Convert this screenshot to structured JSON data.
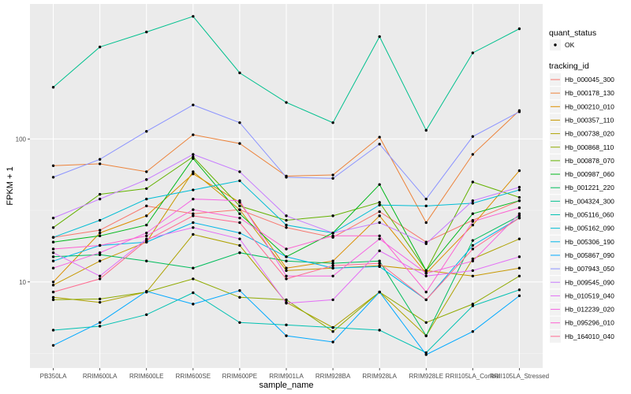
{
  "chart_data": {
    "type": "line",
    "xlabel": "sample_name",
    "ylabel": "FPKM + 1",
    "y_scale": "log10",
    "ylim": [
      2.5,
      880
    ],
    "y_ticks": [
      {
        "value": 10,
        "label": "10"
      },
      {
        "value": 100,
        "label": "100"
      }
    ],
    "grid": true,
    "legend_position": "right",
    "categories": [
      "PB350LA",
      "RRIM600LA",
      "RRIM600LE",
      "RRIM600SE",
      "RRIM600PE",
      "RRIM901LA",
      "RRIM928BA",
      "RRIM928LA",
      "RRIM928LE",
      "RRII105LA_Control",
      "RRII105LA_Stressed"
    ],
    "quant_legend": {
      "title": "quant_status",
      "items": [
        "OK"
      ]
    },
    "tracking_legend_title": "tracking_id",
    "series": [
      {
        "name": "Hb_000045_300",
        "color": "#F8766D",
        "values": [
          20.5,
          23,
          34,
          30,
          32,
          24,
          20.5,
          31,
          19,
          27,
          37
        ]
      },
      {
        "name": "Hb_000178_130",
        "color": "#EC8239",
        "values": [
          65,
          67,
          59,
          107,
          93,
          55,
          56,
          103,
          26,
          78,
          158
        ]
      },
      {
        "name": "Hb_000210_010",
        "color": "#DB8E00",
        "values": [
          10,
          22,
          29,
          57,
          36,
          12.5,
          14,
          29,
          11.5,
          25,
          60
        ]
      },
      {
        "name": "Hb_000357_110",
        "color": "#C79800",
        "values": [
          9.5,
          14,
          19,
          59,
          32,
          12,
          12.5,
          13,
          12,
          11,
          12.5
        ]
      },
      {
        "name": "Hb_000738_020",
        "color": "#AEA200",
        "values": [
          7.8,
          7.2,
          8.5,
          21.5,
          18,
          7.2,
          4.8,
          8.5,
          4.2,
          14.5,
          20
        ]
      },
      {
        "name": "Hb_000868_110",
        "color": "#8FAA00",
        "values": [
          7.5,
          7.6,
          8.5,
          10.5,
          7.8,
          7.5,
          4.5,
          8.5,
          5.2,
          7,
          11
        ]
      },
      {
        "name": "Hb_000878_070",
        "color": "#64B200",
        "values": [
          24,
          41,
          45,
          75,
          34,
          27,
          29,
          36,
          12,
          50,
          39
        ]
      },
      {
        "name": "Hb_000987_060",
        "color": "#00B81B",
        "values": [
          19,
          21,
          25,
          73,
          30,
          15,
          22,
          48,
          12,
          30,
          37
        ]
      },
      {
        "name": "Hb_001221_220",
        "color": "#00BD5C",
        "values": [
          15,
          15.5,
          14,
          12.5,
          16,
          14,
          13.5,
          14,
          4.2,
          19.5,
          29
        ]
      },
      {
        "name": "Hb_004324_300",
        "color": "#00C08E",
        "values": [
          230,
          440,
          560,
          720,
          290,
          180,
          130,
          520,
          115,
          400,
          590
        ]
      },
      {
        "name": "Hb_005116_060",
        "color": "#00C1B2",
        "values": [
          4.6,
          4.9,
          5.9,
          8.4,
          5.2,
          5,
          4.8,
          4.6,
          3.2,
          6.8,
          8.8
        ]
      },
      {
        "name": "Hb_005162_090",
        "color": "#00BDD4",
        "values": [
          20.5,
          27,
          38,
          44,
          51,
          25,
          22,
          34.5,
          34,
          35.5,
          44
        ]
      },
      {
        "name": "Hb_005306_190",
        "color": "#00B7E8",
        "values": [
          14,
          18,
          19,
          26,
          22,
          15,
          12.5,
          12.8,
          7.5,
          18,
          28
        ]
      },
      {
        "name": "Hb_005867_090",
        "color": "#00A9FF",
        "values": [
          3.6,
          5.2,
          8.6,
          7,
          8.7,
          4.2,
          3.8,
          8.5,
          3.1,
          4.5,
          8
        ]
      },
      {
        "name": "Hb_007943_050",
        "color": "#8B93FF",
        "values": [
          54,
          72,
          113,
          173,
          130,
          54,
          53,
          92,
          38,
          104,
          155
        ]
      },
      {
        "name": "Hb_009545_090",
        "color": "#C77CFF",
        "values": [
          28,
          38,
          52,
          78,
          59,
          29,
          22,
          26,
          18.5,
          37,
          46
        ]
      },
      {
        "name": "Hb_010519_040",
        "color": "#E36EF6",
        "values": [
          16,
          11,
          20,
          24,
          20,
          7.1,
          7.5,
          16.5,
          11,
          12,
          15
        ]
      },
      {
        "name": "Hb_012239_020",
        "color": "#F564E3",
        "values": [
          12.5,
          16,
          22,
          38,
          37,
          11,
          11,
          20,
          11.5,
          14,
          30
        ]
      },
      {
        "name": "Hb_095296_010",
        "color": "#FD61D1",
        "values": [
          17,
          18,
          21,
          32,
          28,
          17,
          21,
          21,
          8.5,
          26.5,
          33
        ]
      },
      {
        "name": "Hb_164010_040",
        "color": "#FF6C91",
        "values": [
          8.5,
          10.5,
          19.5,
          29,
          26,
          10.5,
          13,
          13.5,
          7.5,
          17,
          28
        ]
      }
    ]
  }
}
